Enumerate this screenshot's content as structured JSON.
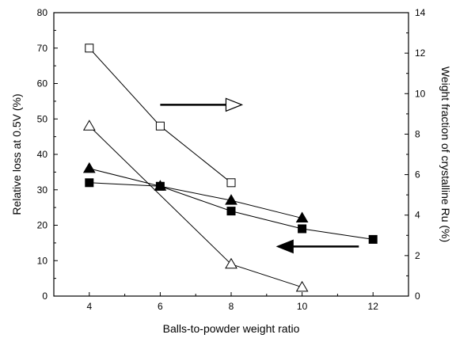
{
  "chart_data": {
    "type": "scatter",
    "xlabel": "Balls-to-powder weight ratio",
    "ylabel_left": "Relative loss at 0.5V (%)",
    "ylabel_right": "Weight fraction of crystalline Ru (%)",
    "xlim": [
      3,
      13
    ],
    "xticks": [
      4,
      6,
      8,
      10,
      12
    ],
    "ylim_left": [
      0,
      80
    ],
    "yticks_left": [
      0,
      10,
      20,
      30,
      40,
      50,
      60,
      70,
      80
    ],
    "ylim_right": [
      0,
      14
    ],
    "yticks_right": [
      0,
      2,
      4,
      6,
      8,
      10,
      12,
      14
    ],
    "grid": false,
    "series": [
      {
        "axis": "left",
        "marker": "square",
        "filled": false,
        "x": [
          4,
          6,
          8
        ],
        "y": [
          70,
          48,
          32
        ]
      },
      {
        "axis": "left",
        "marker": "triangle",
        "filled": false,
        "x": [
          4,
          8,
          10
        ],
        "y": [
          48,
          9,
          2.5
        ]
      },
      {
        "axis": "left",
        "marker": "triangle",
        "filled": true,
        "x": [
          4,
          6,
          8,
          10
        ],
        "y": [
          36,
          31,
          27,
          22
        ]
      },
      {
        "axis": "left",
        "marker": "square",
        "filled": true,
        "x": [
          4,
          6,
          8,
          10,
          12
        ],
        "y": [
          32,
          31,
          24,
          19,
          16
        ]
      }
    ],
    "annotations": [
      {
        "type": "arrow",
        "direction": "right",
        "style": "hollow-head",
        "x_from": 6,
        "x_to": 8.3,
        "y": 54,
        "axis": "left"
      },
      {
        "type": "arrow",
        "direction": "left",
        "style": "filled-head",
        "x_from": 11.6,
        "x_to": 9.3,
        "y": 14,
        "axis": "left"
      }
    ]
  }
}
